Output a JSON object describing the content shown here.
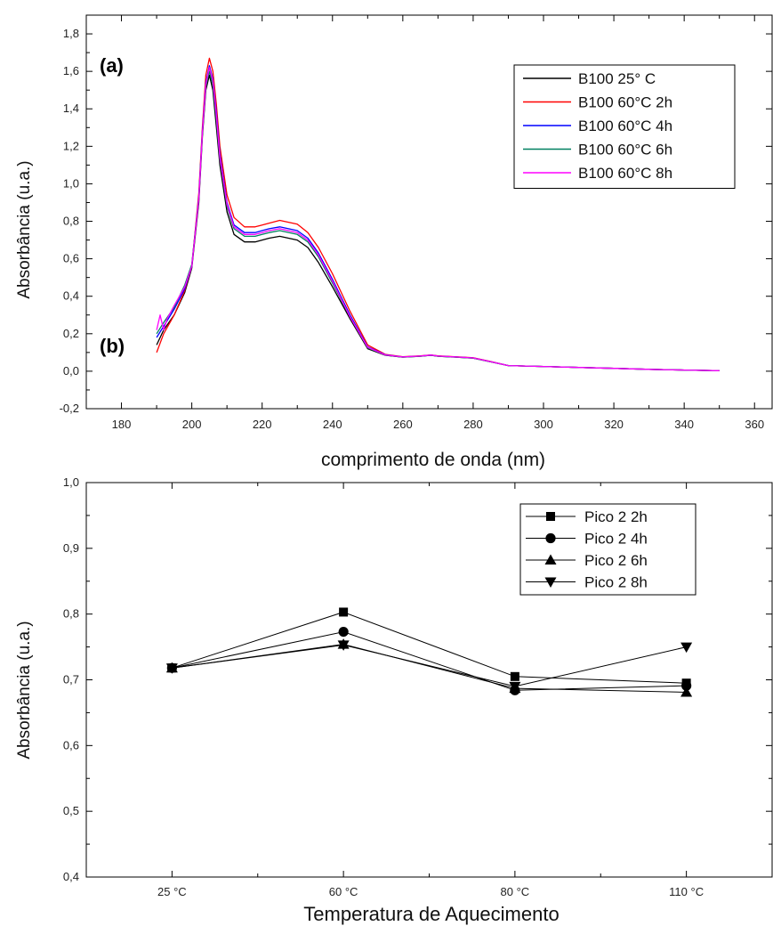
{
  "chart_data": [
    {
      "type": "line",
      "panel_labels": [
        "(a)",
        "(b)"
      ],
      "xlabel": "comprimento de onda (nm)",
      "ylabel": "Absorbância (u.a.)",
      "xlim": [
        170,
        365
      ],
      "ylim": [
        -0.2,
        1.9
      ],
      "x_ticks": [
        180,
        200,
        220,
        240,
        260,
        280,
        300,
        320,
        340,
        360
      ],
      "y_ticks": [
        -0.2,
        0.0,
        0.2,
        0.4,
        0.6,
        0.8,
        1.0,
        1.2,
        1.4,
        1.6,
        1.8
      ],
      "grid": false,
      "legend_position": "top-right",
      "series": [
        {
          "name": "B100 25° C",
          "color": "#000000",
          "x": [
            190,
            192,
            195,
            198,
            200,
            202,
            203,
            204,
            205,
            206,
            207,
            208,
            210,
            212,
            215,
            218,
            220,
            222,
            225,
            230,
            233,
            236,
            240,
            245,
            250,
            255,
            260,
            265,
            268,
            270,
            275,
            280,
            285,
            290,
            300,
            310,
            320,
            330,
            340,
            350
          ],
          "y": [
            0.14,
            0.22,
            0.3,
            0.42,
            0.55,
            0.9,
            1.25,
            1.5,
            1.58,
            1.5,
            1.3,
            1.1,
            0.85,
            0.73,
            0.69,
            0.69,
            0.7,
            0.71,
            0.72,
            0.7,
            0.66,
            0.58,
            0.45,
            0.28,
            0.12,
            0.085,
            0.075,
            0.08,
            0.085,
            0.08,
            0.075,
            0.07,
            0.05,
            0.03,
            0.025,
            0.02,
            0.015,
            0.01,
            0.006,
            0.003
          ]
        },
        {
          "name": "B100 60°C 2h",
          "color": "#ff0000",
          "x": [
            190,
            192,
            195,
            198,
            200,
            202,
            203,
            204,
            205,
            206,
            207,
            208,
            210,
            212,
            215,
            218,
            220,
            222,
            225,
            230,
            233,
            236,
            240,
            245,
            250,
            255,
            260,
            265,
            268,
            270,
            275,
            280,
            285,
            290,
            300,
            310,
            320,
            330,
            340,
            350
          ],
          "y": [
            0.1,
            0.2,
            0.3,
            0.43,
            0.56,
            0.95,
            1.3,
            1.58,
            1.67,
            1.6,
            1.42,
            1.2,
            0.94,
            0.82,
            0.77,
            0.77,
            0.78,
            0.79,
            0.805,
            0.785,
            0.74,
            0.66,
            0.52,
            0.32,
            0.14,
            0.09,
            0.077,
            0.082,
            0.087,
            0.082,
            0.077,
            0.072,
            0.052,
            0.03,
            0.025,
            0.02,
            0.015,
            0.01,
            0.006,
            0.003
          ]
        },
        {
          "name": "B100 60°C 4h",
          "color": "#0000ff",
          "x": [
            190,
            192,
            195,
            198,
            200,
            202,
            203,
            204,
            205,
            206,
            207,
            208,
            210,
            212,
            215,
            218,
            220,
            222,
            225,
            230,
            233,
            236,
            240,
            245,
            250,
            255,
            260,
            265,
            268,
            270,
            275,
            280,
            285,
            290,
            300,
            310,
            320,
            330,
            340,
            350
          ],
          "y": [
            0.18,
            0.24,
            0.33,
            0.44,
            0.56,
            0.93,
            1.28,
            1.54,
            1.63,
            1.56,
            1.38,
            1.16,
            0.9,
            0.78,
            0.74,
            0.74,
            0.75,
            0.76,
            0.77,
            0.75,
            0.71,
            0.63,
            0.49,
            0.3,
            0.13,
            0.088,
            0.076,
            0.081,
            0.086,
            0.081,
            0.076,
            0.071,
            0.051,
            0.03,
            0.025,
            0.02,
            0.015,
            0.01,
            0.006,
            0.003
          ]
        },
        {
          "name": "B100 60°C 6h",
          "color": "#008060",
          "x": [
            190,
            192,
            195,
            198,
            200,
            202,
            203,
            204,
            205,
            206,
            207,
            208,
            210,
            212,
            215,
            218,
            220,
            222,
            225,
            230,
            233,
            236,
            240,
            245,
            250,
            255,
            260,
            265,
            268,
            270,
            275,
            280,
            285,
            290,
            300,
            310,
            320,
            330,
            340,
            350
          ],
          "y": [
            0.2,
            0.26,
            0.34,
            0.46,
            0.57,
            0.92,
            1.27,
            1.52,
            1.6,
            1.53,
            1.34,
            1.13,
            0.88,
            0.76,
            0.72,
            0.72,
            0.73,
            0.74,
            0.75,
            0.73,
            0.69,
            0.61,
            0.47,
            0.29,
            0.125,
            0.086,
            0.075,
            0.08,
            0.085,
            0.08,
            0.075,
            0.07,
            0.05,
            0.03,
            0.025,
            0.02,
            0.015,
            0.01,
            0.006,
            0.003
          ]
        },
        {
          "name": "B100 60°C 8h",
          "color": "#ff00ff",
          "x": [
            190,
            191,
            192,
            193,
            195,
            198,
            200,
            202,
            203,
            204,
            205,
            206,
            207,
            208,
            210,
            212,
            215,
            218,
            220,
            222,
            225,
            230,
            233,
            236,
            240,
            245,
            250,
            255,
            260,
            265,
            268,
            270,
            275,
            280,
            285,
            290,
            300,
            310,
            320,
            330,
            340,
            350
          ],
          "y": [
            0.22,
            0.3,
            0.22,
            0.28,
            0.35,
            0.45,
            0.56,
            0.92,
            1.27,
            1.53,
            1.62,
            1.55,
            1.36,
            1.14,
            0.89,
            0.77,
            0.73,
            0.73,
            0.74,
            0.75,
            0.76,
            0.74,
            0.7,
            0.62,
            0.48,
            0.29,
            0.128,
            0.087,
            0.076,
            0.081,
            0.086,
            0.081,
            0.076,
            0.071,
            0.051,
            0.03,
            0.025,
            0.02,
            0.015,
            0.01,
            0.006,
            0.003
          ]
        }
      ]
    },
    {
      "type": "line",
      "xlabel": "Temperatura de Aquecimento",
      "ylabel": "Absorbância (u.a.)",
      "categories": [
        "25 °C",
        "60 °C",
        "80 °C",
        "110 °C"
      ],
      "ylim": [
        0.4,
        1.0
      ],
      "y_ticks": [
        0.4,
        0.5,
        0.6,
        0.7,
        0.8,
        0.9,
        1.0
      ],
      "grid": false,
      "legend_position": "top-right",
      "series": [
        {
          "name": "Pico 2 2h",
          "marker": "square",
          "values": [
            0.718,
            0.803,
            0.705,
            0.695
          ]
        },
        {
          "name": "Pico 2 4h",
          "marker": "circle",
          "values": [
            0.718,
            0.773,
            0.684,
            0.691
          ]
        },
        {
          "name": "Pico 2 6h",
          "marker": "triangle-up",
          "values": [
            0.718,
            0.754,
            0.687,
            0.681
          ]
        },
        {
          "name": "Pico 2 8h",
          "marker": "triangle-down",
          "values": [
            0.718,
            0.753,
            0.69,
            0.75
          ]
        }
      ]
    }
  ]
}
